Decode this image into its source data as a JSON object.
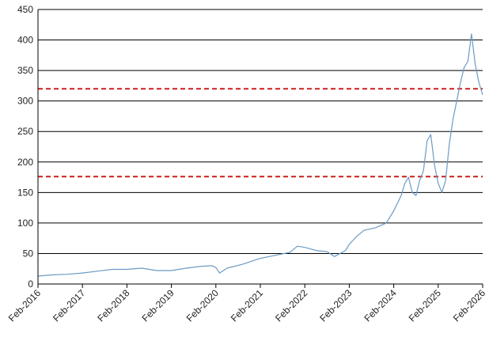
{
  "chart_data": {
    "type": "line",
    "title": "",
    "xlabel": "",
    "ylabel": "",
    "grid": {
      "horizontal": true,
      "vertical": false
    },
    "legend": "none",
    "colors": {
      "series": "#6b9bc4",
      "reference": "#cc1f1f",
      "grid": "#000000",
      "axis": "#000000"
    },
    "xlim": [
      "2016-02",
      "2026-02"
    ],
    "ylim": [
      0,
      450
    ],
    "y_ticks": [
      0,
      50,
      100,
      150,
      200,
      250,
      300,
      350,
      400,
      450
    ],
    "x_ticks": [
      {
        "date": "2016-02",
        "label": "Feb-2016"
      },
      {
        "date": "2017-02",
        "label": "Feb-2017"
      },
      {
        "date": "2018-02",
        "label": "Feb-2018"
      },
      {
        "date": "2019-02",
        "label": "Feb-2019"
      },
      {
        "date": "2020-02",
        "label": "Feb-2020"
      },
      {
        "date": "2021-02",
        "label": "Feb-2021"
      },
      {
        "date": "2022-02",
        "label": "Feb-2022"
      },
      {
        "date": "2023-02",
        "label": "Feb-2023"
      },
      {
        "date": "2024-02",
        "label": "Feb-2024"
      },
      {
        "date": "2025-02",
        "label": "Feb-2025"
      },
      {
        "date": "2026-02",
        "label": "Feb-2026"
      }
    ],
    "reference_lines": [
      {
        "y": 320,
        "style": "dashed"
      },
      {
        "y": 176,
        "style": "dashed"
      }
    ],
    "series": [
      {
        "points": [
          [
            "2016-02",
            13
          ],
          [
            "2016-06",
            15
          ],
          [
            "2016-10",
            16
          ],
          [
            "2017-02",
            18
          ],
          [
            "2017-06",
            21
          ],
          [
            "2017-10",
            24
          ],
          [
            "2018-02",
            24
          ],
          [
            "2018-06",
            26
          ],
          [
            "2018-10",
            22
          ],
          [
            "2019-02",
            22
          ],
          [
            "2019-06",
            26
          ],
          [
            "2019-10",
            29
          ],
          [
            "2020-01",
            30
          ],
          [
            "2020-02",
            27
          ],
          [
            "2020-03",
            18
          ],
          [
            "2020-05",
            26
          ],
          [
            "2020-09",
            32
          ],
          [
            "2021-02",
            42
          ],
          [
            "2021-06",
            47
          ],
          [
            "2021-10",
            52
          ],
          [
            "2021-12",
            62
          ],
          [
            "2022-02",
            60
          ],
          [
            "2022-05",
            55
          ],
          [
            "2022-08",
            53
          ],
          [
            "2022-10",
            45
          ],
          [
            "2023-01",
            55
          ],
          [
            "2023-02",
            65
          ],
          [
            "2023-04",
            78
          ],
          [
            "2023-06",
            88
          ],
          [
            "2023-09",
            92
          ],
          [
            "2023-12",
            100
          ],
          [
            "2024-02",
            120
          ],
          [
            "2024-04",
            145
          ],
          [
            "2024-05",
            165
          ],
          [
            "2024-06",
            175
          ],
          [
            "2024-07",
            150
          ],
          [
            "2024-08",
            145
          ],
          [
            "2024-09",
            170
          ],
          [
            "2024-10",
            185
          ],
          [
            "2024-11",
            235
          ],
          [
            "2024-12",
            245
          ],
          [
            "2025-01",
            195
          ],
          [
            "2025-02",
            165
          ],
          [
            "2025-03",
            150
          ],
          [
            "2025-04",
            170
          ],
          [
            "2025-05",
            230
          ],
          [
            "2025-06",
            270
          ],
          [
            "2025-07",
            300
          ],
          [
            "2025-08",
            330
          ],
          [
            "2025-09",
            355
          ],
          [
            "2025-10",
            365
          ],
          [
            "2025-11",
            410
          ],
          [
            "2025-12",
            360
          ],
          [
            "2026-01",
            330
          ],
          [
            "2026-02",
            310
          ]
        ]
      }
    ]
  }
}
